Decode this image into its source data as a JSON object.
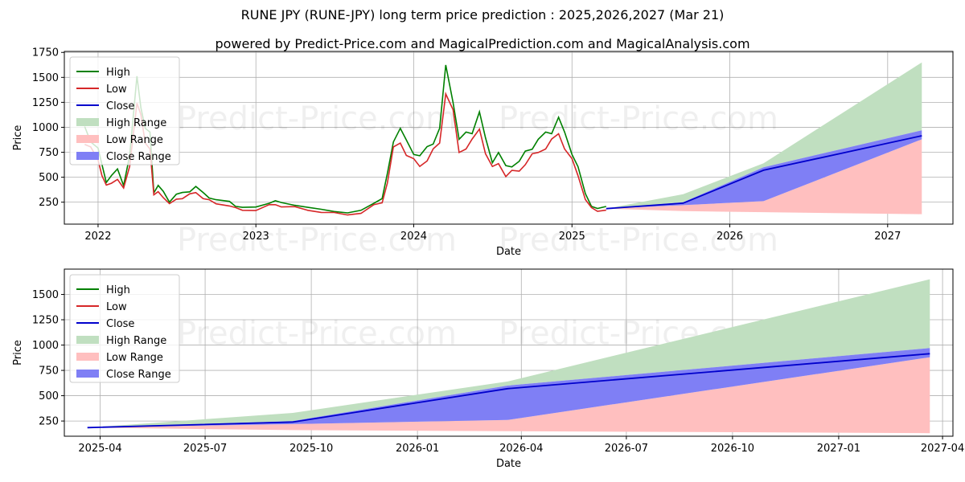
{
  "title": "RUNE JPY (RUNE-JPY) long term price prediction : 2025,2026,2027 (Mar 21)",
  "subtitle": "powered by Predict-Price.com and MagicalPrediction.com and MagicalAnalysis.com",
  "watermark": "Predict-Price.com",
  "colors": {
    "high": "#008000",
    "low": "#d62728",
    "close": "#0000cc",
    "high_range": "#c0dfc0",
    "low_range": "#ffbfbf",
    "close_range": "#7f7ff5"
  },
  "chart_data": [
    {
      "type": "line",
      "xlabel": "Date",
      "ylabel": "Price",
      "xlim": [
        "2021-10-15",
        "2027-06-01"
      ],
      "ylim": [
        30,
        1760
      ],
      "yticks": [
        250,
        500,
        750,
        1000,
        1250,
        1500,
        1750
      ],
      "xticks": [
        "2022-01-01",
        "2023-01-01",
        "2024-01-01",
        "2025-01-01",
        "2026-01-01",
        "2027-01-01"
      ],
      "xtick_labels": [
        "2022",
        "2023",
        "2024",
        "2025",
        "2026",
        "2027"
      ],
      "grid": true,
      "legend": "top-left",
      "legend_entries": [
        "High",
        "Low",
        "Close",
        "High Range",
        "Low Range",
        "Close Range"
      ],
      "history": [
        [
          "2021-12-01",
          900
        ],
        [
          "2021-12-15",
          820
        ],
        [
          "2022-01-01",
          720
        ],
        [
          "2022-01-10",
          560
        ],
        [
          "2022-01-20",
          430
        ],
        [
          "2022-02-01",
          470
        ],
        [
          "2022-02-15",
          520
        ],
        [
          "2022-03-01",
          400
        ],
        [
          "2022-03-15",
          650
        ],
        [
          "2022-04-01",
          1350
        ],
        [
          "2022-04-10",
          1150
        ],
        [
          "2022-04-20",
          900
        ],
        [
          "2022-05-01",
          850
        ],
        [
          "2022-05-10",
          330
        ],
        [
          "2022-05-20",
          380
        ],
        [
          "2022-06-01",
          320
        ],
        [
          "2022-06-15",
          240
        ],
        [
          "2022-07-01",
          300
        ],
        [
          "2022-07-15",
          310
        ],
        [
          "2022-08-01",
          340
        ],
        [
          "2022-08-15",
          370
        ],
        [
          "2022-09-01",
          310
        ],
        [
          "2022-09-15",
          280
        ],
        [
          "2022-10-01",
          250
        ],
        [
          "2022-11-01",
          230
        ],
        [
          "2022-11-15",
          200
        ],
        [
          "2022-12-01",
          180
        ],
        [
          "2023-01-01",
          180
        ],
        [
          "2023-02-01",
          230
        ],
        [
          "2023-02-15",
          240
        ],
        [
          "2023-03-01",
          220
        ],
        [
          "2023-04-01",
          210
        ],
        [
          "2023-05-01",
          180
        ],
        [
          "2023-06-01",
          160
        ],
        [
          "2023-07-01",
          150
        ],
        [
          "2023-08-01",
          130
        ],
        [
          "2023-09-01",
          150
        ],
        [
          "2023-10-01",
          230
        ],
        [
          "2023-10-20",
          260
        ],
        [
          "2023-11-01",
          480
        ],
        [
          "2023-11-15",
          820
        ],
        [
          "2023-12-01",
          900
        ],
        [
          "2023-12-15",
          780
        ],
        [
          "2024-01-01",
          700
        ],
        [
          "2024-01-15",
          650
        ],
        [
          "2024-02-01",
          720
        ],
        [
          "2024-02-15",
          800
        ],
        [
          "2024-03-01",
          900
        ],
        [
          "2024-03-15",
          1450
        ],
        [
          "2024-04-01",
          1200
        ],
        [
          "2024-04-15",
          800
        ],
        [
          "2024-05-01",
          850
        ],
        [
          "2024-05-15",
          900
        ],
        [
          "2024-06-01",
          1050
        ],
        [
          "2024-06-15",
          800
        ],
        [
          "2024-07-01",
          620
        ],
        [
          "2024-07-15",
          680
        ],
        [
          "2024-08-01",
          550
        ],
        [
          "2024-08-15",
          580
        ],
        [
          "2024-09-01",
          600
        ],
        [
          "2024-09-15",
          680
        ],
        [
          "2024-10-01",
          750
        ],
        [
          "2024-10-15",
          800
        ],
        [
          "2024-11-01",
          850
        ],
        [
          "2024-11-15",
          900
        ],
        [
          "2024-12-01",
          1000
        ],
        [
          "2024-12-15",
          850
        ],
        [
          "2025-01-01",
          700
        ],
        [
          "2025-01-15",
          550
        ],
        [
          "2025-02-01",
          300
        ],
        [
          "2025-02-15",
          200
        ],
        [
          "2025-03-01",
          170
        ],
        [
          "2025-03-21",
          185
        ]
      ],
      "forecast": {
        "dates": [
          "2025-03-21",
          "2025-09-15",
          "2026-03-20",
          "2027-03-21"
        ],
        "close": [
          185,
          240,
          570,
          915
        ],
        "close_range_upper": [
          185,
          250,
          600,
          970
        ],
        "close_range_lower": [
          185,
          220,
          260,
          880
        ],
        "high_range_upper": [
          185,
          330,
          640,
          1650
        ],
        "low_range_lower": [
          185,
          160,
          150,
          130
        ]
      }
    },
    {
      "type": "line",
      "xlabel": "Date",
      "ylabel": "Price",
      "xlim": [
        "2025-03-01",
        "2027-04-10"
      ],
      "ylim": [
        100,
        1750
      ],
      "yticks": [
        250,
        500,
        750,
        1000,
        1250,
        1500
      ],
      "xticks": [
        "2025-04-01",
        "2025-07-01",
        "2025-10-01",
        "2026-01-01",
        "2026-04-01",
        "2026-07-01",
        "2026-10-01",
        "2027-01-01",
        "2027-04-01"
      ],
      "xtick_labels": [
        "2025-04",
        "2025-07",
        "2025-10",
        "2026-01",
        "2026-04",
        "2026-07",
        "2026-10",
        "2027-01",
        "2027-04"
      ],
      "grid": true,
      "legend": "top-left",
      "legend_entries": [
        "High",
        "Low",
        "Close",
        "High Range",
        "Low Range",
        "Close Range"
      ],
      "forecast": {
        "dates": [
          "2025-03-21",
          "2025-09-15",
          "2026-03-20",
          "2027-03-21"
        ],
        "close": [
          185,
          240,
          570,
          915
        ],
        "close_range_upper": [
          185,
          250,
          600,
          970
        ],
        "close_range_lower": [
          185,
          220,
          260,
          880
        ],
        "high_range_upper": [
          185,
          330,
          640,
          1650
        ],
        "low_range_lower": [
          185,
          160,
          150,
          130
        ]
      }
    }
  ]
}
